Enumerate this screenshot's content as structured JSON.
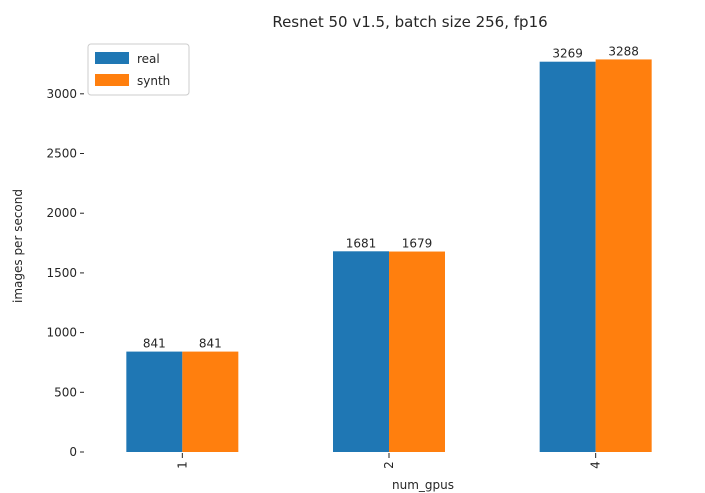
{
  "chart_data": {
    "type": "bar",
    "title": "Resnet 50 v1.5, batch size 256, fp16",
    "xlabel": "num_gpus",
    "ylabel": "images per second",
    "categories": [
      "1",
      "2",
      "4"
    ],
    "series": [
      {
        "name": "real",
        "color": "#1f77b4",
        "values": [
          841,
          1681,
          3269
        ]
      },
      {
        "name": "synth",
        "color": "#ff7f0e",
        "values": [
          841,
          1679,
          3288
        ]
      }
    ],
    "ylim": [
      0,
      3300
    ],
    "yticks": [
      0,
      500,
      1000,
      1500,
      2000,
      2500,
      3000
    ],
    "grid": false,
    "legend_position": "top-left"
  }
}
